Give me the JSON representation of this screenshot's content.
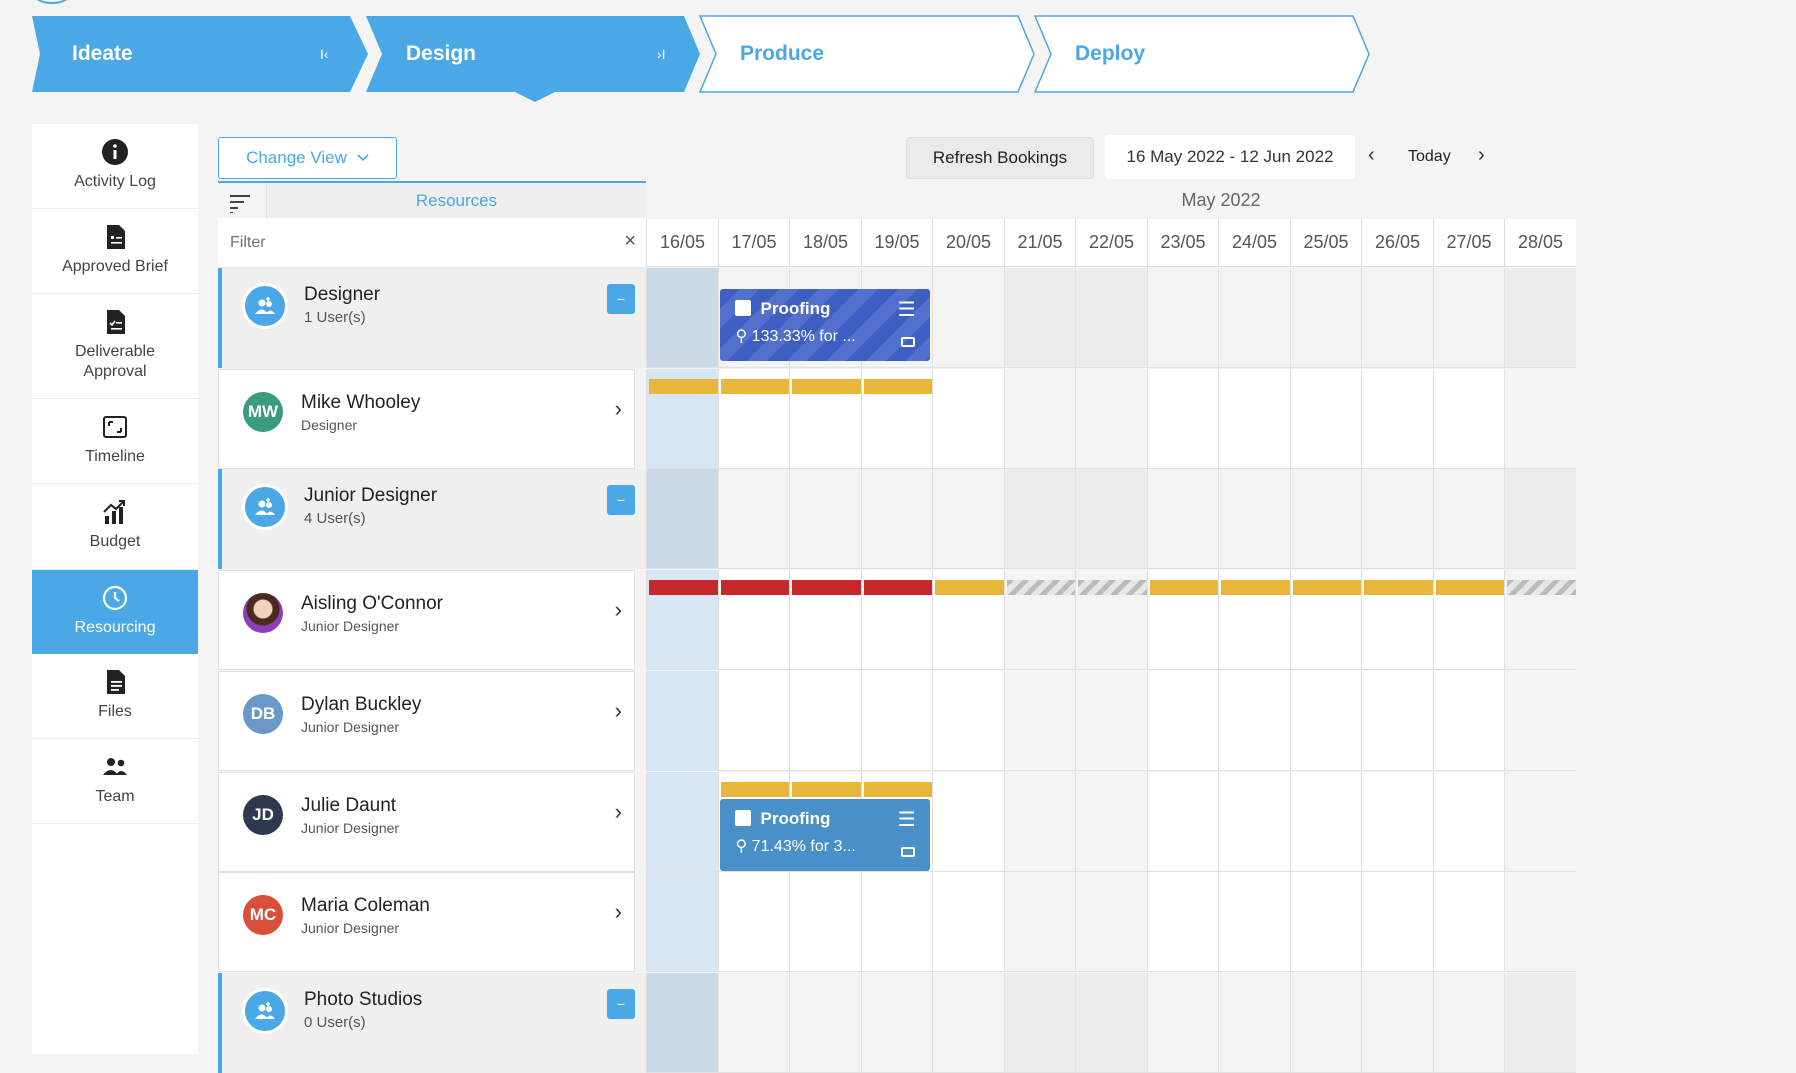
{
  "stages": [
    {
      "label": "Ideate",
      "control": "I‹",
      "state": "done"
    },
    {
      "label": "Design",
      "control": "›I",
      "state": "current"
    },
    {
      "label": "Produce",
      "control": "",
      "state": "todo"
    },
    {
      "label": "Deploy",
      "control": "",
      "state": "todo"
    }
  ],
  "nav": {
    "items": [
      {
        "label": "Activity Log",
        "icon": "info-icon"
      },
      {
        "label": "Approved Brief",
        "icon": "document-icon"
      },
      {
        "label": "Deliverable Approval",
        "icon": "document-check-icon"
      },
      {
        "label": "Timeline",
        "icon": "timeline-icon"
      },
      {
        "label": "Budget",
        "icon": "budget-chart-icon"
      },
      {
        "label": "Resourcing",
        "icon": "clock-icon",
        "active": true
      },
      {
        "label": "Files",
        "icon": "file-icon"
      },
      {
        "label": "Team",
        "icon": "team-icon"
      }
    ]
  },
  "toolbar": {
    "change_view": "Change View",
    "refresh": "Refresh Bookings",
    "date_range": "16 May 2022 - 12 Jun 2022",
    "today": "Today"
  },
  "resources": {
    "title": "Resources",
    "filter_placeholder": "Filter",
    "rows": [
      {
        "type": "group",
        "name": "Designer",
        "sub": "1 User(s)"
      },
      {
        "type": "user",
        "name": "Mike Whooley",
        "sub": "Designer",
        "initials": "MW",
        "color": "#3a9b7e"
      },
      {
        "type": "group",
        "name": "Junior Designer",
        "sub": "4 User(s)"
      },
      {
        "type": "user",
        "name": "Aisling O'Connor",
        "sub": "Junior Designer",
        "initials": "",
        "color": "#8b5a3c",
        "photo": true
      },
      {
        "type": "user",
        "name": "Dylan Buckley",
        "sub": "Junior Designer",
        "initials": "DB",
        "color": "#6a98c8"
      },
      {
        "type": "user",
        "name": "Julie Daunt",
        "sub": "Junior Designer",
        "initials": "JD",
        "color": "#2d3a4e"
      },
      {
        "type": "user",
        "name": "Maria Coleman",
        "sub": "Junior Designer",
        "initials": "MC",
        "color": "#d94f3a"
      },
      {
        "type": "group",
        "name": "Photo Studios",
        "sub": "0 User(s)"
      }
    ]
  },
  "calendar": {
    "month": "May 2022",
    "days": [
      "16/05",
      "17/05",
      "18/05",
      "19/05",
      "20/05",
      "21/05",
      "22/05",
      "23/05",
      "24/05",
      "25/05",
      "26/05",
      "27/05",
      "28/05"
    ],
    "weekend_indices": [
      5,
      6,
      12
    ],
    "today_index": 0,
    "bookings": [
      {
        "row": 0,
        "title": "Proofing",
        "info": "133.33% for ...",
        "color": "#3d5fc4",
        "striped": true
      },
      {
        "row": 5,
        "title": "Proofing",
        "info": "71.43% for 3...",
        "color": "#4a90c8",
        "striped": false
      }
    ],
    "capacity_bars": [
      {
        "row": 1,
        "colors": [
          "#e8b63a",
          "#e8b63a",
          "#e8b63a",
          "#e8b63a",
          "",
          "",
          "",
          "",
          "",
          "",
          "",
          "",
          ""
        ]
      },
      {
        "row": 3,
        "colors": [
          "#c8272b",
          "#c8272b",
          "#c8272b",
          "#c8272b",
          "#e8b63a",
          "striped",
          "striped",
          "#e8b63a",
          "#e8b63a",
          "#e8b63a",
          "#e8b63a",
          "#e8b63a",
          "striped"
        ]
      },
      {
        "row": 5,
        "colors": [
          "",
          "#e8b63a",
          "#e8b63a",
          "#e8b63a",
          "",
          "",
          "",
          "",
          "",
          "",
          "",
          "",
          ""
        ]
      }
    ]
  },
  "colors": {
    "accent": "#4aa8e6",
    "over_allocated": "#c8272b",
    "partial": "#e8b63a"
  }
}
